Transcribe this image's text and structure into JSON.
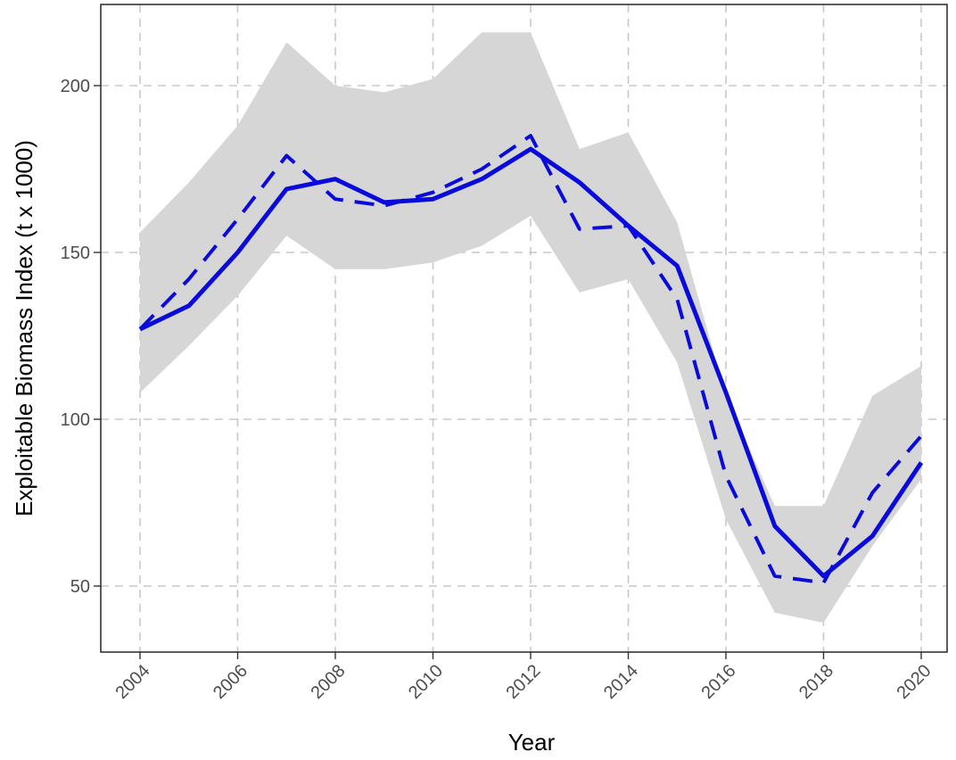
{
  "chart_data": {
    "type": "line",
    "xlabel": "Year",
    "ylabel": "Exploitable Biomass Index (t x 1000)",
    "xlim": [
      2004,
      2020
    ],
    "ylim": [
      30,
      225
    ],
    "x_ticks": [
      2004,
      2006,
      2008,
      2010,
      2012,
      2014,
      2016,
      2018,
      2020
    ],
    "y_ticks": [
      50,
      100,
      150,
      200
    ],
    "grid": true,
    "legend": "none",
    "colors": {
      "line": "#0a0adb",
      "band": "#d6d6d6"
    },
    "x": [
      2004,
      2005,
      2006,
      2007,
      2008,
      2009,
      2010,
      2011,
      2012,
      2013,
      2014,
      2015,
      2016,
      2017,
      2018,
      2019,
      2020
    ],
    "series": [
      {
        "style": "solid",
        "values": [
          127,
          134,
          150,
          169,
          172,
          165,
          166,
          172,
          181,
          171,
          158,
          146,
          108,
          68,
          53,
          65,
          87
        ]
      },
      {
        "style": "dashed",
        "values": [
          127,
          142,
          160,
          179,
          166,
          164,
          168,
          175,
          185,
          157,
          158,
          136,
          83,
          53,
          51,
          78,
          95
        ]
      }
    ],
    "band": {
      "lower": [
        108,
        122,
        137,
        155,
        145,
        145,
        147,
        152,
        161,
        138,
        142,
        117,
        70,
        42,
        39,
        62,
        82
      ],
      "upper": [
        156,
        171,
        188,
        213,
        200,
        198,
        202,
        216,
        216,
        181,
        186,
        159,
        107,
        74,
        74,
        107,
        116
      ]
    }
  }
}
